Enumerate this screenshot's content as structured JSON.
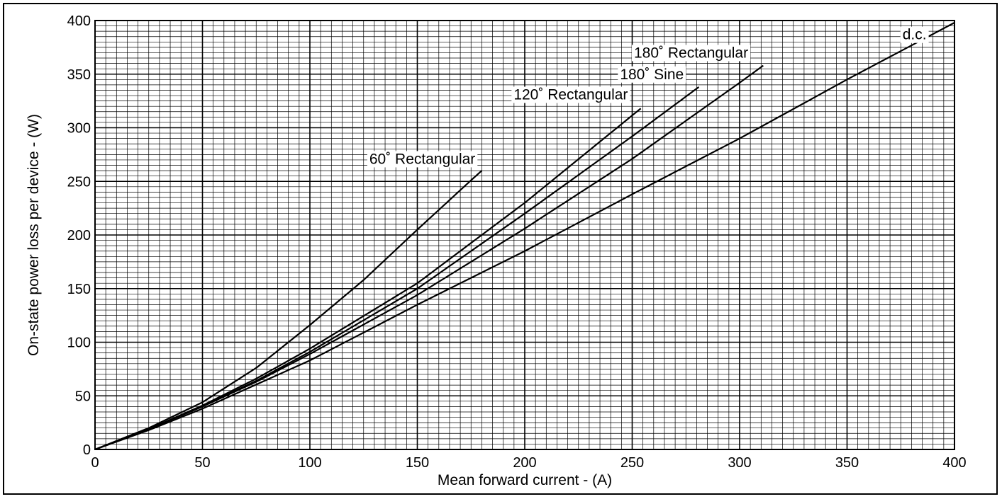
{
  "chart_data": {
    "type": "line",
    "xlabel": "Mean forward current - (A)",
    "ylabel": "On-state power loss per device - (W)",
    "xlim": [
      0,
      400
    ],
    "ylim": [
      0,
      400
    ],
    "x_ticks": [
      0,
      50,
      100,
      150,
      200,
      250,
      300,
      350,
      400
    ],
    "y_ticks": [
      0,
      50,
      100,
      150,
      200,
      250,
      300,
      350,
      400
    ],
    "x_tick_labels": [
      "0",
      "50",
      "100",
      "150",
      "200",
      "250",
      "300",
      "350",
      "400"
    ],
    "y_tick_labels": [
      "0",
      "50",
      "100",
      "150",
      "200",
      "250",
      "300",
      "350",
      "400"
    ],
    "minor_grid_step": 5,
    "major_grid_step": 50,
    "grid": true,
    "series": [
      {
        "name": "60˚ Rectangular",
        "x": [
          0,
          25,
          50,
          75,
          100,
          125,
          150,
          175,
          180
        ],
        "y": [
          0,
          20,
          44,
          76,
          116,
          158,
          205,
          251,
          260
        ]
      },
      {
        "name": "120˚ Rectangular",
        "x": [
          0,
          25,
          50,
          75,
          100,
          150,
          200,
          254
        ],
        "y": [
          0,
          19,
          41,
          66,
          94,
          155,
          230,
          318
        ]
      },
      {
        "name": "180˚ Sine",
        "x": [
          0,
          25,
          50,
          75,
          100,
          150,
          200,
          250,
          281
        ],
        "y": [
          0,
          19,
          40,
          64,
          91,
          150,
          220,
          292,
          338
        ]
      },
      {
        "name": "180˚ Rectangular",
        "x": [
          0,
          25,
          50,
          75,
          100,
          150,
          200,
          250,
          300,
          311
        ],
        "y": [
          0,
          19,
          40,
          63,
          89,
          144,
          206,
          271,
          342,
          358
        ]
      },
      {
        "name": "d.c.",
        "x": [
          0,
          25,
          50,
          100,
          150,
          200,
          250,
          300,
          350,
          400
        ],
        "y": [
          0,
          18,
          38,
          83,
          135,
          185,
          238,
          290,
          345,
          398
        ]
      }
    ],
    "labels": [
      {
        "text": "60˚ Rectangular",
        "x": 177,
        "y": 271,
        "anchor": "end"
      },
      {
        "text": "120˚ Rectangular",
        "x": 248,
        "y": 331,
        "anchor": "end"
      },
      {
        "text": "180˚ Sine",
        "x": 274,
        "y": 350,
        "anchor": "end"
      },
      {
        "text": "180˚ Rectangular",
        "x": 304,
        "y": 370,
        "anchor": "end"
      },
      {
        "text": "d.c.",
        "x": 387,
        "y": 387,
        "anchor": "end"
      }
    ]
  }
}
